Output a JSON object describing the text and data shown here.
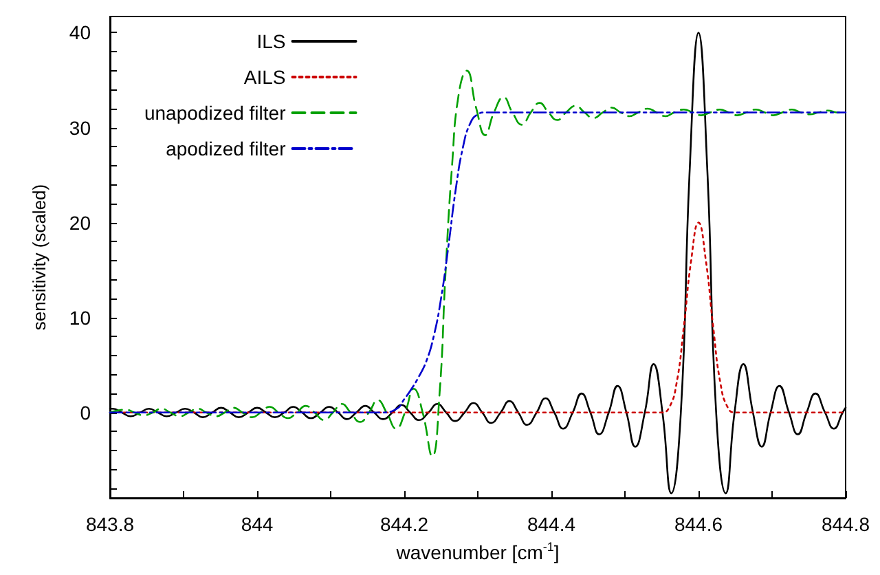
{
  "chart_data": {
    "type": "line",
    "xlabel": "wavenumber [cm$^{-1}$]",
    "ylabel": "sensitivity (scaled)",
    "xlim": [
      843.8,
      844.8
    ],
    "xticks": [
      843.8,
      {
        "value": 843.9,
        "label": null
      },
      844,
      {
        "value": 844.1,
        "label": null
      },
      844.2,
      {
        "value": 844.3,
        "label": null
      },
      844.4,
      {
        "value": 844.5,
        "label": null
      },
      844.6,
      {
        "value": 844.7,
        "label": null
      },
      844.8
    ],
    "ylim": [
      -9,
      41.7
    ],
    "yticks": [
      {
        "value": -8,
        "label": null
      },
      {
        "value": -6,
        "label": null
      },
      {
        "value": -4,
        "label": null
      },
      {
        "value": -2,
        "label": null
      },
      0,
      {
        "value": 2,
        "label": null
      },
      {
        "value": 4,
        "label": null
      },
      {
        "value": 6,
        "label": null
      },
      {
        "value": 8,
        "label": null
      },
      10,
      {
        "value": 12,
        "label": null
      },
      {
        "value": 14,
        "label": null
      },
      {
        "value": 16,
        "label": null
      },
      {
        "value": 18,
        "label": null
      },
      20,
      {
        "value": 22,
        "label": null
      },
      {
        "value": 24,
        "label": null
      },
      {
        "value": 26,
        "label": null
      },
      {
        "value": 28,
        "label": null
      },
      30,
      {
        "value": 32,
        "label": null
      },
      {
        "value": 34,
        "label": null
      },
      {
        "value": 36,
        "label": null
      },
      {
        "value": 38,
        "label": null
      },
      40
    ],
    "grid": false,
    "legend": "top left",
    "marker": "none",
    "series": [
      {
        "name": "ILS",
        "color": "#000000",
        "line_style": "solid",
        "x": [
          843.8,
          843.804,
          843.816,
          843.828,
          843.841,
          843.853,
          843.865,
          843.877,
          843.89,
          843.902,
          843.914,
          843.926,
          843.939,
          843.951,
          843.963,
          843.975,
          843.988,
          844.0,
          844.012,
          844.024,
          844.037,
          844.049,
          844.061,
          844.073,
          844.086,
          844.098,
          844.11,
          844.122,
          844.135,
          844.147,
          844.159,
          844.171,
          844.184,
          844.196,
          844.208,
          844.22,
          844.233,
          844.245,
          844.257,
          844.269,
          844.282,
          844.294,
          844.306,
          844.318,
          844.331,
          844.343,
          844.355,
          844.367,
          844.38,
          844.392,
          844.404,
          844.416,
          844.429,
          844.441,
          844.453,
          844.465,
          844.478,
          844.49,
          844.502,
          844.514,
          844.527,
          844.539,
          844.551,
          844.563,
          844.576,
          844.588,
          844.6,
          844.612,
          844.624,
          844.637,
          844.649,
          844.661,
          844.674,
          844.686,
          844.698,
          844.71,
          844.723,
          844.735,
          844.747,
          844.759,
          844.772,
          844.784,
          844.796,
          844.8
        ],
        "values": [
          0.4,
          0.4,
          0,
          -0.4,
          0,
          0.4,
          0,
          -0.4,
          0,
          0.4,
          0,
          -0.5,
          0,
          0.5,
          0,
          -0.5,
          0,
          0.5,
          0,
          -0.5,
          0,
          0.6,
          0,
          -0.6,
          0,
          0.6,
          0,
          -0.7,
          0,
          0.7,
          0,
          -0.7,
          0,
          0.8,
          0,
          -0.8,
          0,
          0.9,
          0,
          -0.9,
          0,
          1,
          0,
          -1.1,
          0,
          1.2,
          0,
          -1.3,
          0,
          1.5,
          0,
          -1.7,
          0,
          2,
          0,
          -2.3,
          0,
          2.8,
          0,
          -3.6,
          0,
          5.1,
          0,
          -8.5,
          0,
          25.5,
          40,
          25.5,
          0,
          -8.5,
          0,
          5.1,
          0,
          -3.6,
          0,
          2.8,
          0,
          -2.3,
          0,
          2,
          0,
          -1.7,
          0,
          0.5
        ]
      },
      {
        "name": "AILS",
        "color": "#cc0000",
        "line_style": "dotted",
        "x": [
          843.8,
          844.55,
          844.56,
          844.57,
          844.58,
          844.59,
          844.6,
          844.61,
          844.62,
          844.63,
          844.64,
          844.65,
          844.8
        ],
        "values": [
          0,
          0,
          0.5,
          3,
          9,
          16,
          20,
          16,
          9,
          3,
          0.5,
          0,
          0
        ]
      },
      {
        "name": "unapodized filter",
        "color": "#00a000",
        "line_style": "dashed",
        "x": [
          843.8,
          843.821,
          843.833,
          843.846,
          843.858,
          843.87,
          843.882,
          843.895,
          843.907,
          843.919,
          843.931,
          843.944,
          843.956,
          843.968,
          843.98,
          843.993,
          844.005,
          844.017,
          844.029,
          844.042,
          844.054,
          844.066,
          844.078,
          844.091,
          844.103,
          844.115,
          844.127,
          844.14,
          844.152,
          844.164,
          844.176,
          844.189,
          844.201,
          844.213,
          844.225,
          844.238,
          844.248,
          844.256,
          844.265,
          844.274,
          844.285,
          844.298,
          844.31,
          844.322,
          844.335,
          844.347,
          844.36,
          844.372,
          844.384,
          844.396,
          844.408,
          844.42,
          844.433,
          844.445,
          844.457,
          844.47,
          844.482,
          844.494,
          844.506,
          844.518,
          844.531,
          844.543,
          844.555,
          844.567,
          844.58,
          844.592,
          844.604,
          844.616,
          844.629,
          844.641,
          844.653,
          844.665,
          844.678,
          844.69,
          844.702,
          844.714,
          844.727,
          844.739,
          844.751,
          844.763,
          844.776,
          844.788,
          844.8
        ],
        "values": [
          0,
          0.3,
          0,
          -0.3,
          0,
          0.4,
          0,
          -0.4,
          0,
          0.4,
          0,
          -0.4,
          0,
          0.5,
          0,
          -0.5,
          0,
          0.6,
          0,
          -0.6,
          0,
          0.7,
          0,
          -0.8,
          0,
          0.9,
          0,
          -1.0,
          0,
          1.3,
          0,
          -1.7,
          0,
          2.5,
          0,
          -4.6,
          2,
          14.5,
          26,
          33.5,
          36,
          32,
          29.2,
          31.6,
          33.2,
          31.6,
          30.3,
          31.6,
          32.6,
          31.6,
          30.8,
          31.6,
          32.3,
          31.6,
          31.0,
          31.6,
          32.1,
          31.6,
          31.2,
          31.6,
          32.0,
          31.6,
          31.2,
          31.6,
          31.9,
          31.6,
          31.3,
          31.6,
          31.9,
          31.6,
          31.3,
          31.6,
          31.9,
          31.6,
          31.3,
          31.6,
          31.9,
          31.6,
          31.4,
          31.6,
          31.8,
          31.6,
          31.6
        ]
      },
      {
        "name": "apodized filter",
        "color": "#0000cc",
        "line_style": "dashdot",
        "x": [
          843.8,
          844.17,
          844.19,
          844.2,
          844.21,
          844.22,
          844.23,
          844.24,
          844.25,
          844.26,
          844.27,
          844.28,
          844.29,
          844.3,
          844.31,
          844.8
        ],
        "values": [
          0,
          0,
          0.4,
          1.4,
          2.5,
          3.8,
          5.4,
          8,
          12,
          17.5,
          23.5,
          28,
          30.5,
          31.4,
          31.6,
          31.6
        ]
      }
    ]
  }
}
